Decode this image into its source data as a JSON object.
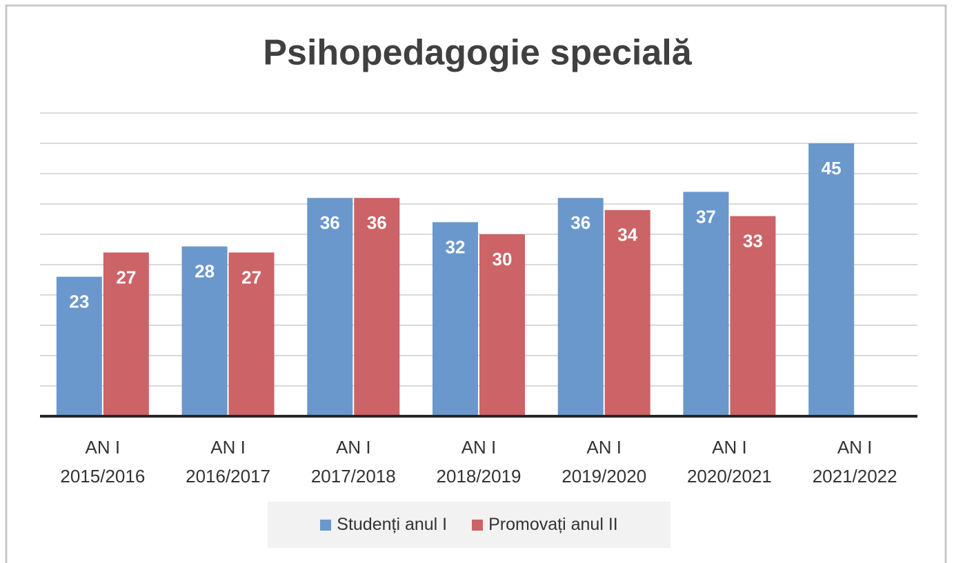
{
  "chart_data": {
    "type": "bar",
    "title": "Psihopedagogie specială",
    "categories": [
      "AN I\n2015/2016",
      "AN I\n2016/2017",
      "AN I\n2017/2018",
      "AN I\n2018/2019",
      "AN I\n2019/2020",
      "AN I\n2020/2021",
      "AN I\n2021/2022"
    ],
    "series": [
      {
        "name": "Studenți anul I",
        "color": "#6a98cc",
        "values": [
          23,
          28,
          36,
          32,
          36,
          37,
          45
        ]
      },
      {
        "name": "Promovați anul II",
        "color": "#cc6366",
        "values": [
          27,
          27,
          36,
          30,
          34,
          33,
          null
        ]
      }
    ],
    "ylim": [
      0,
      50
    ],
    "yticks": [
      0,
      5,
      10,
      15,
      20,
      25,
      30,
      35,
      40,
      45,
      50
    ],
    "grid": true,
    "legend": "bottom"
  }
}
